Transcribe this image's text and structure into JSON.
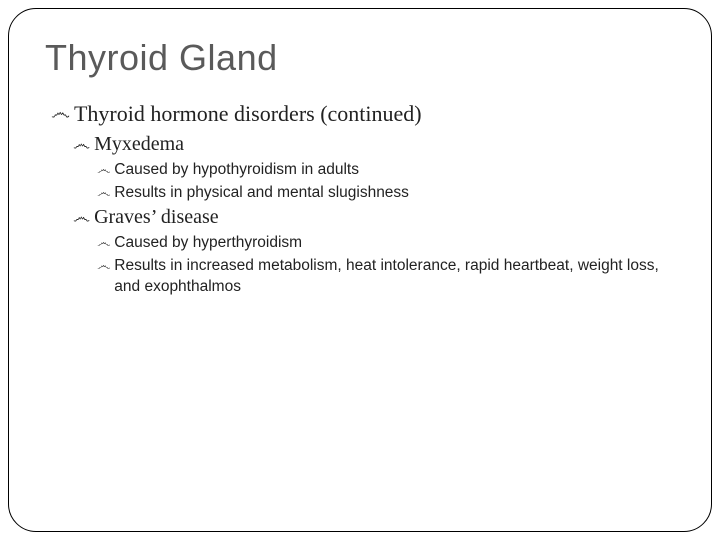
{
  "slide": {
    "title": "Thyroid Gland",
    "frame_border_color": "#000000",
    "frame_border_radius": 28,
    "background_color": "#ffffff",
    "title_color": "#5a5a5a",
    "title_fontfamily": "Arial",
    "title_fontsize": 36,
    "body_serif_fontfamily": "Georgia",
    "body_sans_fontfamily": "Arial",
    "bullet_glyph": "෴",
    "levels": {
      "l1": {
        "fontsize": 22,
        "indent": 6
      },
      "l2": {
        "fontsize": 20,
        "indent": 28
      },
      "l3": {
        "fontsize": 15.5,
        "indent": 52
      }
    },
    "content": {
      "heading": "Thyroid hormone disorders (continued)",
      "items": [
        {
          "name": "Myxedema",
          "points": [
            "Caused by hypothyroidism in adults",
            "Results in physical and mental slugishness"
          ]
        },
        {
          "name": "Graves’ disease",
          "points": [
            "Caused by hyperthyroidism",
            "Results in increased metabolism, heat intolerance, rapid heartbeat, weight loss, and exophthalmos"
          ]
        }
      ]
    }
  }
}
